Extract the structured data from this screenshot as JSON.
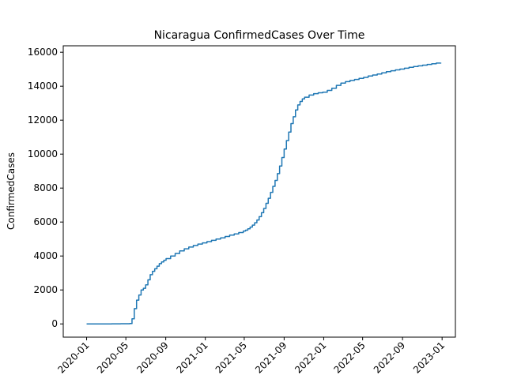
{
  "chart_data": {
    "type": "line",
    "title": "Nicaragua  ConfirmedCases Over Time",
    "xlabel": "",
    "ylabel": "ConfirmedCases",
    "x_is_date": true,
    "xlim": [
      "2019-10-21",
      "2023-02-11"
    ],
    "ylim": [
      -780,
      16380
    ],
    "yticks": [
      0,
      2000,
      4000,
      6000,
      8000,
      10000,
      12000,
      14000,
      16000
    ],
    "xticks": [
      "2020-01-01",
      "2020-05-01",
      "2020-09-01",
      "2021-01-01",
      "2021-05-01",
      "2021-09-01",
      "2022-01-01",
      "2022-05-01",
      "2022-09-01",
      "2023-01-01"
    ],
    "xtick_labels": [
      "2020-01",
      "2020-05",
      "2020-09",
      "2021-01",
      "2021-05",
      "2021-09",
      "2022-01",
      "2022-05",
      "2022-09",
      "2023-01"
    ],
    "grid": false,
    "series": [
      {
        "color": "#1f77b4",
        "x": [
          "2020-01-01",
          "2020-03-18",
          "2020-04-15",
          "2020-05-13",
          "2020-05-20",
          "2020-05-27",
          "2020-06-03",
          "2020-06-10",
          "2020-06-17",
          "2020-06-24",
          "2020-07-01",
          "2020-07-08",
          "2020-07-15",
          "2020-07-22",
          "2020-07-29",
          "2020-08-05",
          "2020-08-12",
          "2020-08-19",
          "2020-08-26",
          "2020-09-02",
          "2020-09-16",
          "2020-09-30",
          "2020-10-14",
          "2020-10-28",
          "2020-11-11",
          "2020-11-25",
          "2020-12-09",
          "2020-12-23",
          "2021-01-06",
          "2021-01-20",
          "2021-02-03",
          "2021-02-17",
          "2021-03-03",
          "2021-03-17",
          "2021-03-31",
          "2021-04-14",
          "2021-04-28",
          "2021-05-05",
          "2021-05-12",
          "2021-05-19",
          "2021-05-26",
          "2021-06-02",
          "2021-06-09",
          "2021-06-16",
          "2021-06-23",
          "2021-06-30",
          "2021-07-07",
          "2021-07-14",
          "2021-07-21",
          "2021-07-28",
          "2021-08-04",
          "2021-08-11",
          "2021-08-18",
          "2021-08-25",
          "2021-09-01",
          "2021-09-08",
          "2021-09-15",
          "2021-09-22",
          "2021-09-29",
          "2021-10-06",
          "2021-10-13",
          "2021-10-20",
          "2021-10-27",
          "2021-11-03",
          "2021-11-17",
          "2021-12-01",
          "2021-12-15",
          "2021-12-29",
          "2022-01-12",
          "2022-01-26",
          "2022-02-09",
          "2022-02-23",
          "2022-03-09",
          "2022-03-23",
          "2022-04-06",
          "2022-04-20",
          "2022-05-04",
          "2022-05-18",
          "2022-06-01",
          "2022-06-15",
          "2022-06-29",
          "2022-07-13",
          "2022-07-27",
          "2022-08-10",
          "2022-08-24",
          "2022-09-07",
          "2022-09-21",
          "2022-10-05",
          "2022-10-19",
          "2022-11-02",
          "2022-11-16",
          "2022-11-30",
          "2022-12-14",
          "2022-12-28"
        ],
        "y": [
          0,
          2,
          10,
          25,
          300,
          900,
          1400,
          1700,
          2000,
          2100,
          2300,
          2600,
          2900,
          3100,
          3250,
          3400,
          3550,
          3650,
          3750,
          3850,
          4000,
          4150,
          4300,
          4420,
          4530,
          4620,
          4700,
          4770,
          4850,
          4920,
          5000,
          5070,
          5150,
          5230,
          5300,
          5380,
          5470,
          5520,
          5600,
          5700,
          5820,
          5960,
          6120,
          6320,
          6550,
          6800,
          7100,
          7400,
          7750,
          8100,
          8450,
          8850,
          9300,
          9800,
          10300,
          10800,
          11300,
          11800,
          12200,
          12600,
          12900,
          13100,
          13250,
          13350,
          13480,
          13560,
          13610,
          13650,
          13750,
          13880,
          14050,
          14180,
          14270,
          14340,
          14400,
          14460,
          14520,
          14600,
          14660,
          14720,
          14790,
          14860,
          14910,
          14960,
          15010,
          15060,
          15110,
          15160,
          15200,
          15240,
          15280,
          15320,
          15360,
          15380
        ]
      }
    ]
  }
}
